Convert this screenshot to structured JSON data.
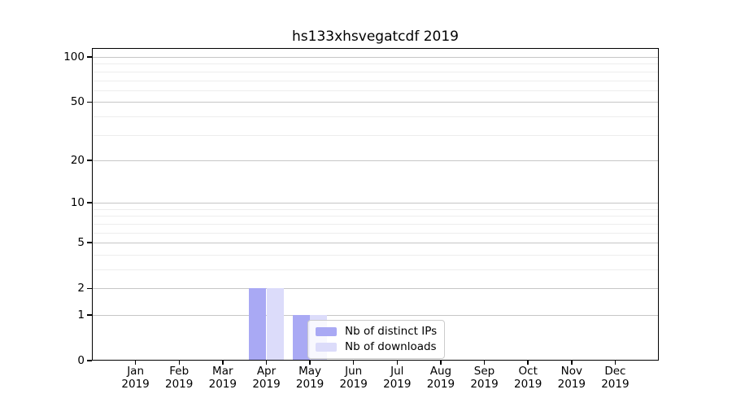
{
  "chart_data": {
    "type": "bar",
    "title": "hs133xhsvegatcdf 2019",
    "categories": [
      "Jan",
      "Feb",
      "Mar",
      "Apr",
      "May",
      "Jun",
      "Jul",
      "Aug",
      "Sep",
      "Oct",
      "Nov",
      "Dec"
    ],
    "category_sublabel": "2019",
    "series": [
      {
        "name": "Nb of distinct IPs",
        "color": "#a9a9f4",
        "values": [
          0,
          0,
          0,
          2,
          1,
          0,
          0,
          0,
          0,
          0,
          0,
          0
        ]
      },
      {
        "name": "Nb of downloads",
        "color": "#dcdcfa",
        "values": [
          0,
          0,
          0,
          2,
          1,
          0,
          0,
          0,
          0,
          0,
          0,
          0
        ]
      }
    ],
    "xlabel": "",
    "ylabel": "",
    "y_axis": {
      "scale": "log1p",
      "major_ticks": [
        0,
        1,
        2,
        5,
        10,
        20,
        50,
        100
      ],
      "minor_gridline_values": [
        3,
        4,
        6,
        7,
        8,
        9,
        30,
        40,
        60,
        70,
        80,
        90
      ],
      "top_value_gridline": 100
    },
    "grid": {
      "horizontal_major": true,
      "horizontal_minor": true,
      "vertical": false
    },
    "legend": {
      "position": "inside-bottom-center-left",
      "entries": [
        {
          "label": "Nb of distinct IPs",
          "swatch_color": "#a9a9f4"
        },
        {
          "label": "Nb of downloads",
          "swatch_color": "#dcdcfa"
        }
      ]
    },
    "colors": {
      "major_grid": "#c6c6c6",
      "minor_grid": "#ededed",
      "axis": "#000000",
      "text": "#000000",
      "background": "#ffffff",
      "legend_border": "#cccccc"
    }
  }
}
